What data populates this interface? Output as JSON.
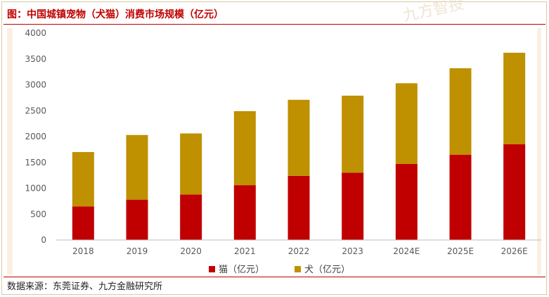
{
  "title": "图：中国城镇宠物（犬猫）消费市场规模（亿元）",
  "source": "数据来源：东莞证券、九方金融研究所",
  "watermark": "九方智投",
  "colors": {
    "cat": "#c00000",
    "dog": "#bf9000",
    "title": "#c00000",
    "axis": "#bfbfbf",
    "tick_label": "#595959"
  },
  "chart_data": {
    "type": "bar",
    "stacked": true,
    "categories": [
      "2018",
      "2019",
      "2020",
      "2021",
      "2022",
      "2023",
      "2024E",
      "2025E",
      "2026E"
    ],
    "series": [
      {
        "name": "猫（亿元）",
        "values": [
          650,
          780,
          880,
          1060,
          1240,
          1300,
          1470,
          1650,
          1850
        ]
      },
      {
        "name": "犬（亿元）",
        "values": [
          1050,
          1250,
          1180,
          1430,
          1470,
          1490,
          1560,
          1670,
          1770
        ]
      }
    ],
    "yticks": [
      0,
      500,
      1000,
      1500,
      2000,
      2500,
      3000,
      3500,
      4000
    ],
    "ylim": [
      0,
      4000
    ],
    "grid": false,
    "legend_position": "bottom"
  }
}
